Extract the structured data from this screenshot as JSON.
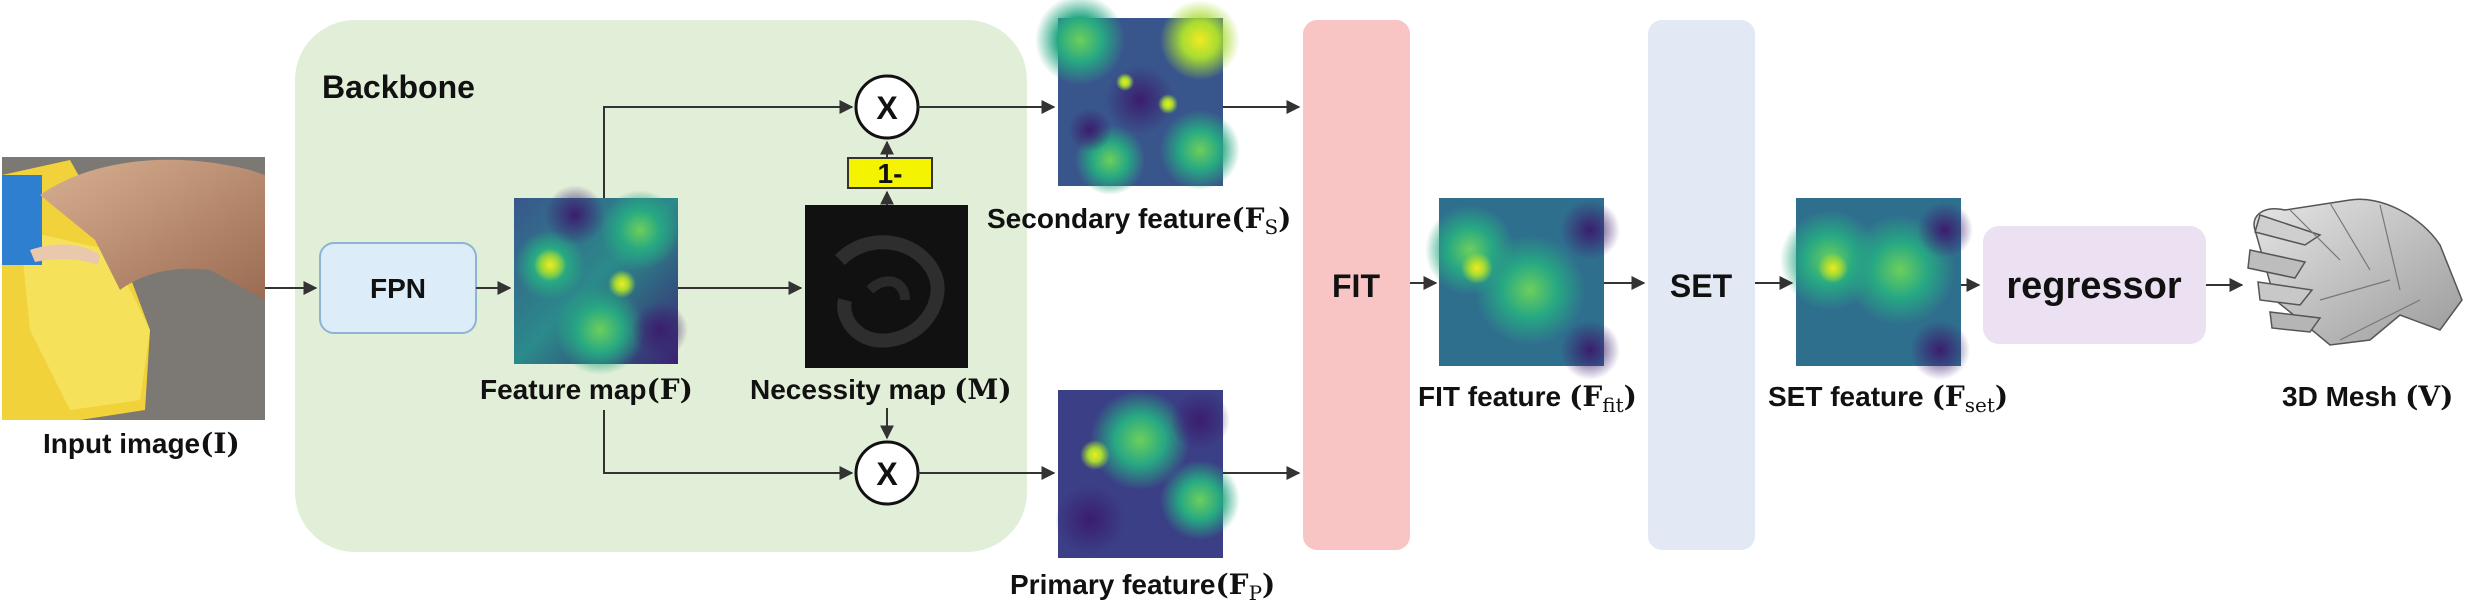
{
  "colors": {
    "backbone_bg": "#e2efd8",
    "fpn_fill": "#dcecf8",
    "fpn_stroke": "#8eb4d4",
    "fit_fill": "#f8c4c4",
    "set_fill": "#e2e8f4",
    "regressor_fill": "#ece1f2",
    "gate_fill": "#f4f400",
    "arrow": "#333333",
    "viridis_dark": "#3b2173",
    "viridis_mid": "#2b8a8a",
    "viridis_bright": "#a8dc32",
    "viridis_peak": "#f2ea22"
  },
  "backbone": {
    "title": "Backbone"
  },
  "input": {
    "label": "Input image",
    "symbol": "(I)"
  },
  "fpn": {
    "label": "FPN"
  },
  "feature_map": {
    "label": "Feature map",
    "symbol": "(F)"
  },
  "necessity_map": {
    "label": "Necessity map",
    "symbol": "(M)"
  },
  "gate": {
    "label": "1-"
  },
  "mult_top": {
    "label": "X"
  },
  "mult_bottom": {
    "label": "X"
  },
  "secondary": {
    "label": "Secondary feature",
    "sym_open": "(F",
    "sub": "S",
    "sym_close": ")"
  },
  "primary": {
    "label": "Primary feature",
    "sym_open": "(F",
    "sub": "P",
    "sym_close": ")"
  },
  "fit": {
    "label": "FIT"
  },
  "fit_feature": {
    "label": "FIT feature",
    "sym_open": "(F",
    "sub": "fit",
    "sym_close": ")"
  },
  "set": {
    "label": "SET"
  },
  "set_feature": {
    "label": "SET feature",
    "sym_open": "(F",
    "sub": "set",
    "sym_close": ")"
  },
  "regressor": {
    "label": "regressor"
  },
  "mesh": {
    "label": "3D Mesh",
    "symbol": "(V)"
  }
}
